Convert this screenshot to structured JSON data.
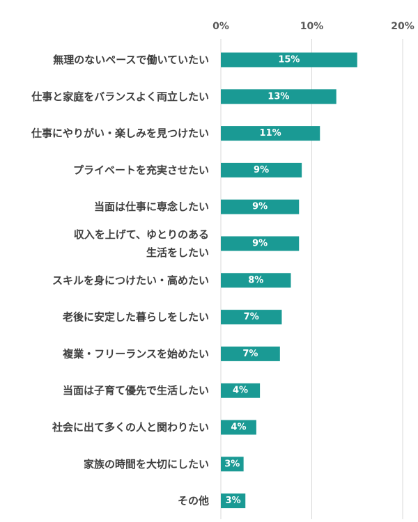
{
  "colors": {
    "bar": "#1a9a94",
    "axis_text": "#595959",
    "category_text": "#404040",
    "grid": "#d9d9d9",
    "value_text": "#ffffff"
  },
  "chart_data": {
    "type": "bar",
    "orientation": "horizontal",
    "x_ticks": [
      "0%",
      "10%",
      "20%"
    ],
    "xlim": [
      0,
      20
    ],
    "grid": true,
    "categories": [
      {
        "lines": [
          "無理のないペースで働いていたい"
        ],
        "value": 15,
        "label": "15%"
      },
      {
        "lines": [
          "仕事と家庭をバランスよく両立したい"
        ],
        "value": 12.7,
        "label": "13%"
      },
      {
        "lines": [
          "仕事にやりがい・楽しみを見つけたい"
        ],
        "value": 10.9,
        "label": "11%"
      },
      {
        "lines": [
          "プライベートを充実させたい"
        ],
        "value": 8.9,
        "label": "9%"
      },
      {
        "lines": [
          "当面は仕事に専念したい"
        ],
        "value": 8.6,
        "label": "9%"
      },
      {
        "lines": [
          "収入を上げて、ゆとりのある",
          "生活をしたい"
        ],
        "value": 8.6,
        "label": "9%"
      },
      {
        "lines": [
          "スキルを身につけたい・高めたい"
        ],
        "value": 7.7,
        "label": "8%"
      },
      {
        "lines": [
          "老後に安定した暮らしをしたい"
        ],
        "value": 6.7,
        "label": "7%"
      },
      {
        "lines": [
          "複業・フリーランスを始めたい"
        ],
        "value": 6.5,
        "label": "7%"
      },
      {
        "lines": [
          "当面は子育て優先で生活したい"
        ],
        "value": 4.3,
        "label": "4%"
      },
      {
        "lines": [
          "社会に出て多くの人と関わりたい"
        ],
        "value": 3.9,
        "label": "4%"
      },
      {
        "lines": [
          "家族の時間を大切にしたい"
        ],
        "value": 2.5,
        "label": "3%"
      },
      {
        "lines": [
          "その他"
        ],
        "value": 2.7,
        "label": "3%"
      }
    ]
  }
}
